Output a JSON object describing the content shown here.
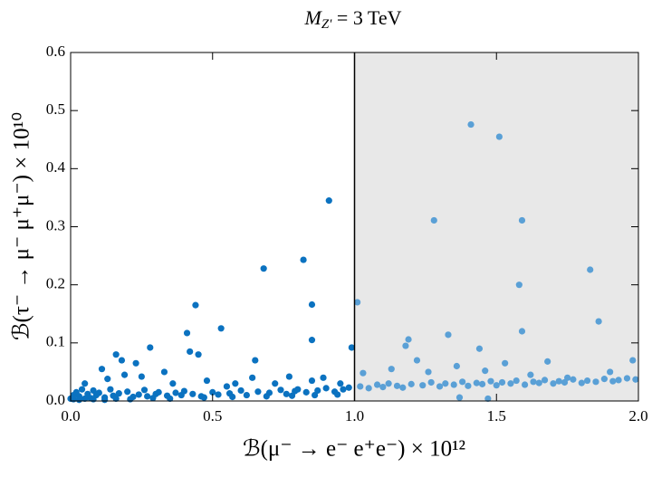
{
  "chart_data": {
    "type": "scatter",
    "title": {
      "main": "M",
      "sub": "Z'",
      "rest": " = 3 TeV"
    },
    "x_label": "ℬ(μ⁻ → e⁻ e⁺e⁻) × 10¹²",
    "y_label": "ℬ(τ⁻ → μ⁻ μ⁺μ⁻) × 10¹⁰",
    "xlim": [
      0,
      2
    ],
    "ylim": [
      0,
      0.6
    ],
    "xticks": [
      {
        "value": 0,
        "label": "0.0"
      },
      0.5,
      {
        "value": 1,
        "label": "1.0"
      },
      1.5,
      {
        "value": 2,
        "label": "2.0"
      }
    ],
    "yticks": [
      {
        "value": 0,
        "label": "0.0"
      },
      0.1,
      0.2,
      0.3,
      0.4,
      0.5,
      {
        "value": 0.6,
        "label": "0.6"
      }
    ],
    "shaded_region": {
      "xmin": 1,
      "xmax": 2,
      "color": "#e8e8e8"
    },
    "vline": 1,
    "series": [
      {
        "color": "#0b72c0",
        "x": [
          0.91,
          0.68,
          0.82,
          0.44,
          0.85,
          0.53,
          0.85,
          0.41,
          0.99,
          0.28,
          0.42,
          0.16,
          0.18,
          0.45,
          0.23,
          0.65,
          0.11,
          0.33,
          0.19,
          0.64,
          0.77,
          0.85,
          0.89,
          0.36,
          0.48,
          0.58,
          0.72,
          0.05,
          0.13,
          0.25,
          0.55,
          0.95,
          0.01,
          0.02,
          0.03,
          0.04,
          0.06,
          0.07,
          0.08,
          0.09,
          0.1,
          0.12,
          0.14,
          0.15,
          0.17,
          0.2,
          0.22,
          0.24,
          0.26,
          0.27,
          0.3,
          0.31,
          0.34,
          0.37,
          0.39,
          0.4,
          0.43,
          0.46,
          0.5,
          0.52,
          0.56,
          0.6,
          0.62,
          0.66,
          0.7,
          0.74,
          0.76,
          0.79,
          0.8,
          0.83,
          0.87,
          0.9,
          0.93,
          0.96,
          0.98,
          0.0,
          0.01,
          0.03,
          0.05,
          0.08,
          0.12,
          0.16,
          0.21,
          0.29,
          0.35,
          0.47,
          0.57,
          0.69,
          0.78,
          0.86,
          0.94
        ],
        "y": [
          0.345,
          0.228,
          0.243,
          0.165,
          0.166,
          0.125,
          0.105,
          0.117,
          0.092,
          0.092,
          0.085,
          0.08,
          0.07,
          0.08,
          0.065,
          0.07,
          0.055,
          0.05,
          0.045,
          0.04,
          0.042,
          0.035,
          0.04,
          0.03,
          0.035,
          0.03,
          0.03,
          0.03,
          0.038,
          0.042,
          0.025,
          0.03,
          0.01,
          0.015,
          0.008,
          0.02,
          0.012,
          0.005,
          0.018,
          0.01,
          0.014,
          0.006,
          0.02,
          0.009,
          0.013,
          0.016,
          0.007,
          0.011,
          0.019,
          0.008,
          0.012,
          0.015,
          0.009,
          0.014,
          0.01,
          0.017,
          0.012,
          0.008,
          0.015,
          0.011,
          0.013,
          0.018,
          0.01,
          0.016,
          0.014,
          0.019,
          0.012,
          0.017,
          0.02,
          0.015,
          0.018,
          0.022,
          0.016,
          0.02,
          0.023,
          0.004,
          0.003,
          0.002,
          0.004,
          0.003,
          0.002,
          0.004,
          0.003,
          0.005,
          0.004,
          0.006,
          0.007,
          0.008,
          0.009,
          0.01,
          0.011
        ]
      },
      {
        "color": "#5aa0d6",
        "x": [
          1.41,
          1.51,
          1.28,
          1.59,
          1.83,
          1.58,
          1.01,
          1.86,
          1.59,
          1.19,
          1.33,
          1.44,
          1.18,
          1.22,
          1.68,
          1.36,
          1.53,
          1.13,
          1.26,
          1.98,
          1.75,
          1.9,
          1.46,
          1.62,
          1.03,
          1.02,
          1.05,
          1.08,
          1.1,
          1.12,
          1.15,
          1.17,
          1.2,
          1.24,
          1.27,
          1.3,
          1.32,
          1.35,
          1.38,
          1.4,
          1.43,
          1.45,
          1.48,
          1.5,
          1.52,
          1.55,
          1.57,
          1.6,
          1.63,
          1.65,
          1.67,
          1.7,
          1.72,
          1.74,
          1.77,
          1.8,
          1.82,
          1.85,
          1.88,
          1.91,
          1.93,
          1.96,
          1.99,
          1.37,
          1.47
        ],
        "y": [
          0.476,
          0.455,
          0.311,
          0.311,
          0.226,
          0.2,
          0.17,
          0.137,
          0.12,
          0.106,
          0.114,
          0.09,
          0.095,
          0.07,
          0.068,
          0.06,
          0.065,
          0.055,
          0.05,
          0.07,
          0.04,
          0.05,
          0.052,
          0.045,
          0.048,
          0.025,
          0.022,
          0.028,
          0.024,
          0.03,
          0.026,
          0.023,
          0.029,
          0.027,
          0.032,
          0.025,
          0.03,
          0.028,
          0.033,
          0.026,
          0.031,
          0.029,
          0.034,
          0.027,
          0.032,
          0.03,
          0.035,
          0.028,
          0.033,
          0.031,
          0.036,
          0.03,
          0.034,
          0.032,
          0.037,
          0.031,
          0.035,
          0.033,
          0.038,
          0.034,
          0.036,
          0.039,
          0.037,
          0.006,
          0.004
        ]
      }
    ]
  }
}
